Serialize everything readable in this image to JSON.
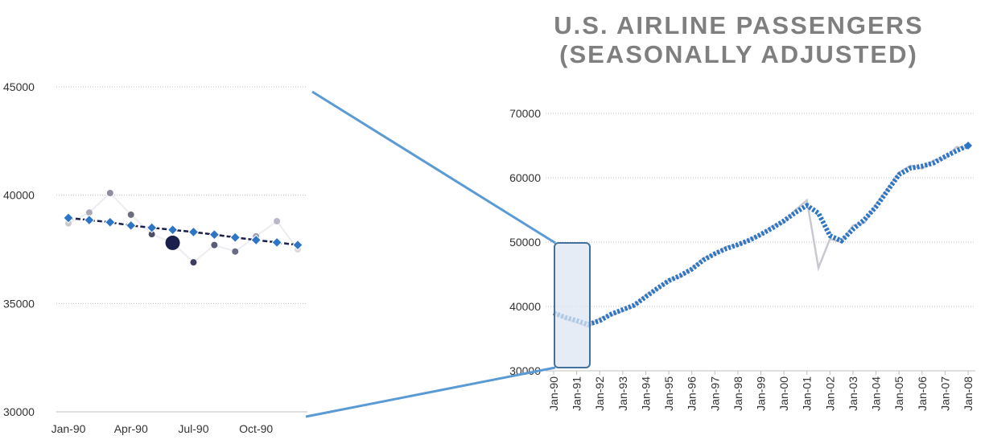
{
  "title_line1": "U.S. AIRLINE PASSENGERS",
  "title_line2": "(SEASONALLY ADJUSTED)",
  "colors": {
    "title": "#7f7f7f",
    "trend": "#2e75c4",
    "raw": "#c8c8d0",
    "connector": "#5b9bd5",
    "highlight_fill": "#dce6f2",
    "highlight_stroke": "#41719c",
    "zoom_dark": "#1b1f4b"
  },
  "chart_data": [
    {
      "type": "line",
      "panel": "detail",
      "ylim": [
        30000,
        45000
      ],
      "yticks": [
        "30000",
        "35000",
        "40000",
        "45000"
      ],
      "xticks": [
        "Jan-90",
        "Apr-90",
        "Jul-90",
        "Oct-90"
      ],
      "grid": true,
      "x": [
        "Jan-90",
        "Feb-90",
        "Mar-90",
        "Apr-90",
        "May-90",
        "Jun-90",
        "Jul-90",
        "Aug-90",
        "Sep-90",
        "Oct-90",
        "Nov-90",
        "Dec-90"
      ],
      "series": [
        {
          "values": [
            38700,
            39200,
            40100,
            39100,
            38200,
            37800,
            36900,
            37700,
            37400,
            38100,
            38800,
            37500
          ]
        },
        {
          "values": [
            38950,
            38850,
            38750,
            38600,
            38500,
            38400,
            38300,
            38180,
            38050,
            37930,
            37820,
            37700
          ]
        }
      ]
    },
    {
      "type": "line",
      "panel": "overview",
      "ylim": [
        30000,
        70000
      ],
      "yticks": [
        "30000",
        "40000",
        "50000",
        "60000",
        "70000"
      ],
      "xticks": [
        "Jan-90",
        "Jan-91",
        "Jan-92",
        "Jan-93",
        "Jan-94",
        "Jan-95",
        "Jan-96",
        "Jan-97",
        "Jan-98",
        "Jan-99",
        "Jan-00",
        "Jan-01",
        "Jan-02",
        "Jan-03",
        "Jan-04",
        "Jan-05",
        "Jan-06",
        "Jan-07",
        "Jan-08"
      ],
      "grid": true,
      "x": [
        "Jan-90",
        "Jul-90",
        "Jan-91",
        "Jul-91",
        "Jan-92",
        "Jul-92",
        "Jan-93",
        "Jul-93",
        "Jan-94",
        "Jul-94",
        "Jan-95",
        "Jul-95",
        "Jan-96",
        "Jul-96",
        "Jan-97",
        "Jul-97",
        "Jan-98",
        "Jul-98",
        "Jan-99",
        "Jul-99",
        "Jan-00",
        "Jul-00",
        "Jan-01",
        "Jul-01",
        "Jan-02",
        "Jul-02",
        "Jan-03",
        "Jul-03",
        "Jan-04",
        "Jul-04",
        "Jan-05",
        "Jul-05",
        "Jan-06",
        "Jul-06",
        "Jan-07",
        "Jul-07",
        "Jan-08"
      ],
      "series": [
        {
          "values": [
            39000,
            38300,
            37800,
            37200,
            37800,
            38800,
            39500,
            40200,
            41500,
            42800,
            44000,
            44800,
            45800,
            47200,
            48200,
            49000,
            49600,
            50300,
            51200,
            52200,
            53300,
            54600,
            55700,
            54500,
            51000,
            50200,
            52000,
            53500,
            55500,
            58000,
            60500,
            61500,
            61800,
            62300,
            63300,
            64200,
            65000
          ]
        },
        {
          "values": [
            39200,
            38100,
            37500,
            36800,
            38200,
            38600,
            39300,
            40100,
            41800,
            42600,
            44100,
            44600,
            45900,
            47500,
            48100,
            49300,
            49500,
            50400,
            51100,
            52500,
            53000,
            55000,
            56500,
            46000,
            50500,
            50000,
            52600,
            53000,
            55900,
            58300,
            60800,
            61900,
            61400,
            62700,
            63000,
            64800,
            64600
          ]
        }
      ]
    }
  ]
}
